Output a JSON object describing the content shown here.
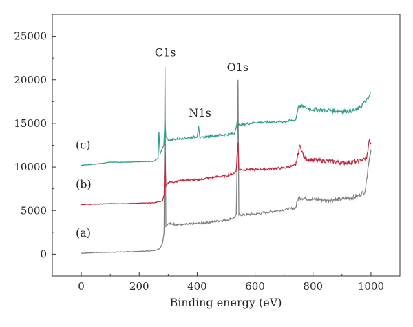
{
  "chart_data": {
    "type": "line",
    "title": "",
    "xlabel": "Binding energy (eV)",
    "ylabel": "",
    "xlim": [
      -100,
      1100
    ],
    "ylim": [
      -2500,
      27500
    ],
    "x_ticks": [
      0,
      200,
      400,
      600,
      800,
      1000
    ],
    "y_ticks": [
      0,
      5000,
      10000,
      15000,
      20000,
      25000
    ],
    "x_tick_labels": [
      "0",
      "200",
      "400",
      "600",
      "800",
      "1000"
    ],
    "y_tick_labels": [
      "0",
      "5000",
      "10000",
      "15000",
      "20000",
      "25000"
    ],
    "grid": false,
    "legend": "none",
    "series": [
      {
        "name": "(a)",
        "color": "#7f7f7f",
        "points": [
          [
            0,
            100
          ],
          [
            50,
            180
          ],
          [
            100,
            220
          ],
          [
            150,
            250
          ],
          [
            200,
            300
          ],
          [
            250,
            400
          ],
          [
            270,
            600
          ],
          [
            280,
            1200
          ],
          [
            286,
            2500
          ],
          [
            289,
            21500
          ],
          [
            292,
            3200
          ],
          [
            300,
            3500
          ],
          [
            350,
            3400
          ],
          [
            400,
            3500
          ],
          [
            450,
            3700
          ],
          [
            500,
            3900
          ],
          [
            530,
            4200
          ],
          [
            535,
            4600
          ],
          [
            538,
            10500
          ],
          [
            541,
            20000
          ],
          [
            544,
            4500
          ],
          [
            600,
            4600
          ],
          [
            700,
            5100
          ],
          [
            740,
            5300
          ],
          [
            750,
            6500
          ],
          [
            800,
            6300
          ],
          [
            850,
            6200
          ],
          [
            900,
            6300
          ],
          [
            950,
            6600
          ],
          [
            980,
            7200
          ],
          [
            990,
            10000
          ],
          [
            1000,
            12000
          ]
        ]
      },
      {
        "name": "(b)",
        "color": "#c0283f",
        "points": [
          [
            0,
            5700
          ],
          [
            50,
            5750
          ],
          [
            100,
            5800
          ],
          [
            150,
            5800
          ],
          [
            200,
            5850
          ],
          [
            250,
            5900
          ],
          [
            280,
            6100
          ],
          [
            286,
            6800
          ],
          [
            289,
            11700
          ],
          [
            292,
            7800
          ],
          [
            300,
            8200
          ],
          [
            350,
            8500
          ],
          [
            400,
            8500
          ],
          [
            450,
            8800
          ],
          [
            500,
            9000
          ],
          [
            530,
            9300
          ],
          [
            535,
            9600
          ],
          [
            538,
            11500
          ],
          [
            541,
            12800
          ],
          [
            544,
            9700
          ],
          [
            600,
            9700
          ],
          [
            700,
            9900
          ],
          [
            740,
            10200
          ],
          [
            755,
            12500
          ],
          [
            770,
            11000
          ],
          [
            800,
            10800
          ],
          [
            850,
            10700
          ],
          [
            900,
            10500
          ],
          [
            950,
            10600
          ],
          [
            985,
            11000
          ],
          [
            995,
            13200
          ],
          [
            1000,
            12600
          ]
        ]
      },
      {
        "name": "(c)",
        "color": "#2e9e8a",
        "points": [
          [
            0,
            10200
          ],
          [
            50,
            10350
          ],
          [
            100,
            10550
          ],
          [
            150,
            10550
          ],
          [
            200,
            10600
          ],
          [
            250,
            10650
          ],
          [
            265,
            11000
          ],
          [
            268,
            14000
          ],
          [
            272,
            11500
          ],
          [
            285,
            12500
          ],
          [
            289,
            15500
          ],
          [
            292,
            13500
          ],
          [
            300,
            13100
          ],
          [
            350,
            13300
          ],
          [
            400,
            13500
          ],
          [
            405,
            14700
          ],
          [
            410,
            13300
          ],
          [
            450,
            13600
          ],
          [
            500,
            13700
          ],
          [
            530,
            13900
          ],
          [
            538,
            15200
          ],
          [
            544,
            14800
          ],
          [
            600,
            15100
          ],
          [
            700,
            15200
          ],
          [
            740,
            15400
          ],
          [
            750,
            17000
          ],
          [
            800,
            16600
          ],
          [
            850,
            16500
          ],
          [
            900,
            16400
          ],
          [
            950,
            16500
          ],
          [
            990,
            17800
          ],
          [
            1000,
            18600
          ]
        ]
      }
    ],
    "annotations": [
      {
        "text": "C1s",
        "x": 290,
        "y": 22700
      },
      {
        "text": "N1s",
        "x": 410,
        "y": 15800
      },
      {
        "text": "O1s",
        "x": 540,
        "y": 21000
      }
    ]
  }
}
